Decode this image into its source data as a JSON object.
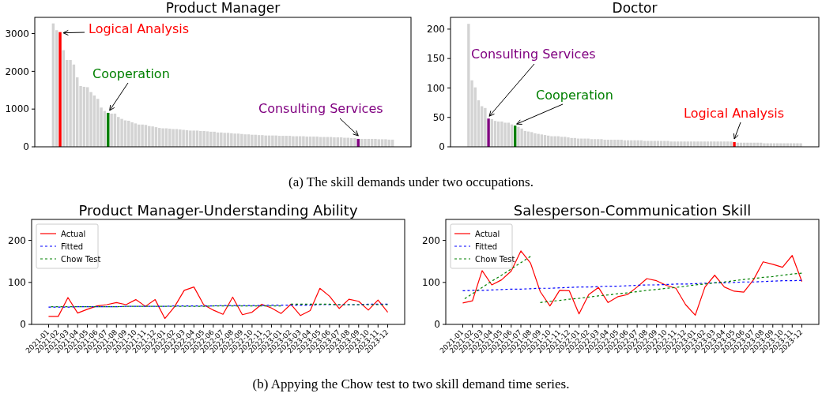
{
  "chart_data": [
    {
      "type": "bar",
      "title": "Product Manager",
      "categories": [
        null,
        null,
        null,
        null,
        null,
        null,
        null,
        null,
        null,
        null,
        null,
        null,
        null,
        null,
        null,
        null,
        null,
        null,
        null,
        null,
        null,
        null,
        null,
        null,
        null,
        null,
        null,
        null,
        null,
        null,
        null,
        null,
        null,
        null,
        null,
        null,
        null,
        null,
        null,
        null,
        null,
        null,
        null,
        null,
        null,
        null,
        null,
        null,
        null,
        null,
        null,
        null,
        null,
        null,
        null,
        null,
        null,
        null,
        null,
        null,
        null,
        null,
        null,
        null,
        null,
        null,
        null,
        null,
        null,
        null,
        null,
        null,
        null,
        null,
        null,
        null,
        null,
        null,
        null,
        null,
        null,
        null,
        null,
        null,
        null,
        null,
        null,
        null,
        null,
        null,
        null,
        null,
        null,
        null,
        null,
        null,
        null,
        null,
        null,
        null
      ],
      "values": [
        3270,
        3090,
        3040,
        2560,
        2300,
        2300,
        2180,
        1840,
        1610,
        1590,
        1580,
        1450,
        1360,
        1270,
        1040,
        950,
        900,
        880,
        880,
        790,
        740,
        700,
        690,
        650,
        620,
        590,
        590,
        580,
        550,
        540,
        520,
        500,
        490,
        490,
        480,
        470,
        470,
        460,
        450,
        440,
        430,
        430,
        430,
        420,
        420,
        410,
        400,
        400,
        380,
        380,
        370,
        370,
        360,
        350,
        350,
        340,
        330,
        330,
        320,
        320,
        310,
        310,
        300,
        300,
        300,
        300,
        290,
        290,
        290,
        290,
        280,
        280,
        280,
        280,
        270,
        270,
        270,
        270,
        260,
        260,
        260,
        260,
        250,
        250,
        250,
        240,
        240,
        230,
        230,
        210,
        210,
        210,
        210,
        210,
        210,
        200,
        200,
        200,
        190,
        190
      ],
      "colors": [
        "#d3d3d3",
        "#d3d3d3",
        "#ff0000",
        "#d3d3d3",
        "#d3d3d3",
        "#d3d3d3",
        "#d3d3d3",
        "#d3d3d3",
        "#d3d3d3",
        "#d3d3d3",
        "#d3d3d3",
        "#d3d3d3",
        "#d3d3d3",
        "#d3d3d3",
        "#d3d3d3",
        "#d3d3d3",
        "#008000",
        "#d3d3d3",
        "#d3d3d3",
        "#d3d3d3",
        "#d3d3d3",
        "#d3d3d3",
        "#d3d3d3",
        "#d3d3d3",
        "#d3d3d3",
        "#d3d3d3",
        "#d3d3d3",
        "#d3d3d3",
        "#d3d3d3",
        "#d3d3d3",
        "#d3d3d3",
        "#d3d3d3",
        "#d3d3d3",
        "#d3d3d3",
        "#d3d3d3",
        "#d3d3d3",
        "#d3d3d3",
        "#d3d3d3",
        "#d3d3d3",
        "#d3d3d3",
        "#d3d3d3",
        "#d3d3d3",
        "#d3d3d3",
        "#d3d3d3",
        "#d3d3d3",
        "#d3d3d3",
        "#d3d3d3",
        "#d3d3d3",
        "#d3d3d3",
        "#d3d3d3",
        "#d3d3d3",
        "#d3d3d3",
        "#d3d3d3",
        "#d3d3d3",
        "#d3d3d3",
        "#d3d3d3",
        "#d3d3d3",
        "#d3d3d3",
        "#d3d3d3",
        "#d3d3d3",
        "#d3d3d3",
        "#d3d3d3",
        "#d3d3d3",
        "#d3d3d3",
        "#d3d3d3",
        "#d3d3d3",
        "#d3d3d3",
        "#d3d3d3",
        "#d3d3d3",
        "#d3d3d3",
        "#d3d3d3",
        "#d3d3d3",
        "#d3d3d3",
        "#d3d3d3",
        "#d3d3d3",
        "#d3d3d3",
        "#d3d3d3",
        "#d3d3d3",
        "#d3d3d3",
        "#d3d3d3",
        "#d3d3d3",
        "#d3d3d3",
        "#d3d3d3",
        "#d3d3d3",
        "#d3d3d3",
        "#d3d3d3",
        "#d3d3d3",
        "#d3d3d3",
        "#d3d3d3",
        "#800080",
        "#d3d3d3",
        "#d3d3d3",
        "#d3d3d3",
        "#d3d3d3",
        "#d3d3d3",
        "#d3d3d3",
        "#d3d3d3",
        "#d3d3d3",
        "#d3d3d3",
        "#d3d3d3"
      ],
      "ylim": [
        0,
        3430
      ],
      "yticks": [
        0,
        1000,
        2000,
        3000
      ],
      "tick_labels": "y",
      "annotations": [
        "Logical Analysis",
        "Cooperation",
        "Consulting Services",
        "(a) The skill demands under two occupations."
      ]
    },
    {
      "type": "bar",
      "title": "Doctor",
      "categories": [
        null,
        null,
        null,
        null,
        null,
        null,
        null,
        null,
        null,
        null,
        null,
        null,
        null,
        null,
        null,
        null,
        null,
        null,
        null,
        null,
        null,
        null,
        null,
        null,
        null,
        null,
        null,
        null,
        null,
        null,
        null,
        null,
        null,
        null,
        null,
        null,
        null,
        null,
        null,
        null,
        null,
        null,
        null,
        null,
        null,
        null,
        null,
        null,
        null,
        null,
        null,
        null,
        null,
        null,
        null,
        null,
        null,
        null,
        null,
        null,
        null,
        null,
        null,
        null,
        null,
        null,
        null,
        null,
        null,
        null,
        null,
        null,
        null,
        null,
        null,
        null,
        null,
        null,
        null,
        null,
        null,
        null,
        null,
        null,
        null,
        null,
        null,
        null,
        null,
        null,
        null,
        null,
        null,
        null,
        null,
        null,
        null,
        null,
        null,
        null,
        null
      ],
      "values": [
        209,
        113,
        101,
        79,
        69,
        66,
        48,
        47,
        44,
        43,
        43,
        41,
        41,
        38,
        36,
        34,
        31,
        27,
        26,
        25,
        23,
        22,
        21,
        20,
        19,
        18,
        18,
        18,
        17,
        17,
        16,
        15,
        15,
        14,
        14,
        14,
        14,
        13,
        13,
        13,
        13,
        12,
        12,
        12,
        12,
        12,
        12,
        11,
        11,
        11,
        11,
        11,
        11,
        10,
        10,
        10,
        10,
        10,
        10,
        10,
        10,
        9,
        9,
        9,
        9,
        9,
        9,
        9,
        9,
        9,
        9,
        9,
        9,
        9,
        9,
        9,
        9,
        9,
        9,
        9,
        8,
        7,
        7,
        7,
        7,
        7,
        7,
        7,
        7,
        6,
        6,
        6,
        6,
        6,
        6,
        6,
        6,
        6,
        6,
        6,
        6
      ],
      "colors": [
        "#d3d3d3",
        "#d3d3d3",
        "#d3d3d3",
        "#d3d3d3",
        "#d3d3d3",
        "#d3d3d3",
        "#800080",
        "#d3d3d3",
        "#d3d3d3",
        "#d3d3d3",
        "#d3d3d3",
        "#d3d3d3",
        "#d3d3d3",
        "#d3d3d3",
        "#008000",
        "#d3d3d3",
        "#d3d3d3",
        "#d3d3d3",
        "#d3d3d3",
        "#d3d3d3",
        "#d3d3d3",
        "#d3d3d3",
        "#d3d3d3",
        "#d3d3d3",
        "#d3d3d3",
        "#d3d3d3",
        "#d3d3d3",
        "#d3d3d3",
        "#d3d3d3",
        "#d3d3d3",
        "#d3d3d3",
        "#d3d3d3",
        "#d3d3d3",
        "#d3d3d3",
        "#d3d3d3",
        "#d3d3d3",
        "#d3d3d3",
        "#d3d3d3",
        "#d3d3d3",
        "#d3d3d3",
        "#d3d3d3",
        "#d3d3d3",
        "#d3d3d3",
        "#d3d3d3",
        "#d3d3d3",
        "#d3d3d3",
        "#d3d3d3",
        "#d3d3d3",
        "#d3d3d3",
        "#d3d3d3",
        "#d3d3d3",
        "#d3d3d3",
        "#d3d3d3",
        "#d3d3d3",
        "#d3d3d3",
        "#d3d3d3",
        "#d3d3d3",
        "#d3d3d3",
        "#d3d3d3",
        "#d3d3d3",
        "#d3d3d3",
        "#d3d3d3",
        "#d3d3d3",
        "#d3d3d3",
        "#d3d3d3",
        "#d3d3d3",
        "#d3d3d3",
        "#d3d3d3",
        "#d3d3d3",
        "#d3d3d3",
        "#d3d3d3",
        "#d3d3d3",
        "#d3d3d3",
        "#d3d3d3",
        "#d3d3d3",
        "#d3d3d3",
        "#d3d3d3",
        "#d3d3d3",
        "#d3d3d3",
        "#d3d3d3",
        "#ff0000",
        "#d3d3d3",
        "#d3d3d3",
        "#d3d3d3",
        "#d3d3d3",
        "#d3d3d3",
        "#d3d3d3",
        "#d3d3d3",
        "#d3d3d3",
        "#d3d3d3",
        "#d3d3d3",
        "#d3d3d3",
        "#d3d3d3",
        "#d3d3d3",
        "#d3d3d3",
        "#d3d3d3",
        "#d3d3d3",
        "#d3d3d3",
        "#d3d3d3",
        "#d3d3d3",
        "#d3d3d3"
      ],
      "ylim": [
        0,
        220
      ],
      "yticks": [
        0,
        50,
        100,
        150,
        200
      ],
      "tick_labels": "y",
      "annotations": [
        "Consulting Services",
        "Cooperation",
        "Logical Analysis"
      ]
    },
    {
      "type": "line",
      "title": "Product Manager-Understanding Ability",
      "categories": [
        "2021-01",
        "2021-02",
        "2021-03",
        "2021-04",
        "2021-05",
        "2021-06",
        "2021-07",
        "2021-08",
        "2021-09",
        "2021-10",
        "2021-11",
        "2021-12",
        "2022-01",
        "2022-02",
        "2022-03",
        "2022-04",
        "2022-05",
        "2022-06",
        "2022-07",
        "2022-08",
        "2022-09",
        "2022-10",
        "2022-11",
        "2022-12",
        "2023-01",
        "2023-02",
        "2023-03",
        "2023-04",
        "2023-05",
        "2023-06",
        "2023-07",
        "2023-08",
        "2023-09",
        "2023-10",
        "2023-11",
        "2023-12"
      ],
      "series": [
        {
          "name": "Actual",
          "color": "#ff0000",
          "line_style": "solid",
          "values": [
            19,
            19,
            64,
            27,
            36,
            44,
            47,
            52,
            47,
            59,
            43,
            59,
            14,
            42,
            81,
            89,
            47,
            34,
            24,
            65,
            23,
            29,
            48,
            39,
            26,
            48,
            21,
            33,
            86,
            67,
            38,
            60,
            55,
            34,
            58,
            29
          ]
        },
        {
          "name": "Fitted",
          "color": "#0000ff",
          "line_style": "dashed",
          "values": [
            41,
            41,
            41,
            42,
            42,
            42,
            42,
            42,
            43,
            43,
            43,
            43,
            43,
            44,
            44,
            44,
            44,
            44,
            45,
            45,
            45,
            45,
            45,
            46,
            46,
            46,
            46,
            46,
            47,
            47,
            47,
            47,
            47,
            48,
            48,
            48
          ]
        },
        {
          "name": "Chow Test",
          "color": "#008000",
          "line_style": "dashed",
          "values": [
            42,
            42,
            42,
            42,
            42,
            42,
            42,
            42,
            43,
            43,
            43,
            43,
            43,
            43,
            43,
            43,
            43,
            44,
            44,
            44,
            44,
            44,
            44,
            44,
            44,
            null,
            null,
            null,
            null,
            null,
            null,
            null,
            null,
            null,
            null,
            null
          ]
        },
        {
          "color": "#008000",
          "line_style": "dashed",
          "values": [
            null,
            null,
            null,
            null,
            null,
            null,
            null,
            null,
            null,
            null,
            null,
            null,
            null,
            null,
            null,
            null,
            null,
            null,
            null,
            null,
            null,
            null,
            null,
            null,
            null,
            48,
            48,
            48,
            48,
            48,
            47,
            47,
            47,
            47,
            47,
            47
          ]
        }
      ],
      "ylim": [
        0,
        250
      ],
      "yticks": [
        0,
        100,
        200
      ],
      "legend": "top left",
      "annotations": [
        "(b) Appying the Chow test to two skill demand time series."
      ]
    },
    {
      "type": "line",
      "title": "Salesperson-Communication Skill",
      "categories": [
        "2021-01",
        "2021-02",
        "2021-03",
        "2021-04",
        "2021-05",
        "2021-06",
        "2021-07",
        "2021-08",
        "2021-09",
        "2021-10",
        "2021-11",
        "2021-12",
        "2022-01",
        "2022-02",
        "2022-03",
        "2022-04",
        "2022-05",
        "2022-06",
        "2022-07",
        "2022-08",
        "2022-09",
        "2022-10",
        "2022-11",
        "2022-12",
        "2023-01",
        "2023-02",
        "2023-03",
        "2023-04",
        "2023-05",
        "2023-06",
        "2023-07",
        "2023-08",
        "2023-09",
        "2023-10",
        "2023-11",
        "2023-12"
      ],
      "series": [
        {
          "name": "Actual",
          "color": "#ff0000",
          "line_style": "solid",
          "values": [
            51,
            56,
            128,
            94,
            106,
            127,
            175,
            146,
            78,
            44,
            81,
            80,
            25,
            71,
            88,
            52,
            66,
            71,
            89,
            109,
            104,
            93,
            86,
            47,
            22,
            89,
            117,
            89,
            79,
            77,
            106,
            149,
            143,
            136,
            164,
            102
          ]
        },
        {
          "name": "Fitted",
          "color": "#0000ff",
          "line_style": "dashed",
          "values": [
            80,
            81,
            81,
            82,
            83,
            84,
            84,
            85,
            86,
            86,
            87,
            88,
            89,
            89,
            90,
            91,
            91,
            92,
            93,
            94,
            94,
            95,
            96,
            96,
            97,
            98,
            99,
            99,
            100,
            101,
            101,
            102,
            103,
            104,
            104,
            105
          ]
        },
        {
          "name": "Chow Test",
          "color": "#008000",
          "line_style": "dashed",
          "values": [
            58,
            73,
            88,
            103,
            117,
            132,
            147,
            162,
            null,
            null,
            null,
            null,
            null,
            null,
            null,
            null,
            null,
            null,
            null,
            null,
            null,
            null,
            null,
            null,
            null,
            null,
            null,
            null,
            null,
            null,
            null,
            null,
            null,
            null,
            null,
            null
          ]
        },
        {
          "color": "#008000",
          "line_style": "dashed",
          "values": [
            null,
            null,
            null,
            null,
            null,
            null,
            null,
            null,
            52,
            55,
            57,
            60,
            62,
            65,
            68,
            70,
            73,
            75,
            78,
            81,
            83,
            86,
            88,
            91,
            94,
            96,
            99,
            101,
            104,
            107,
            109,
            112,
            114,
            117,
            120,
            122
          ]
        }
      ],
      "ylim": [
        0,
        250
      ],
      "yticks": [
        0,
        100,
        200
      ],
      "legend": "top left"
    }
  ]
}
